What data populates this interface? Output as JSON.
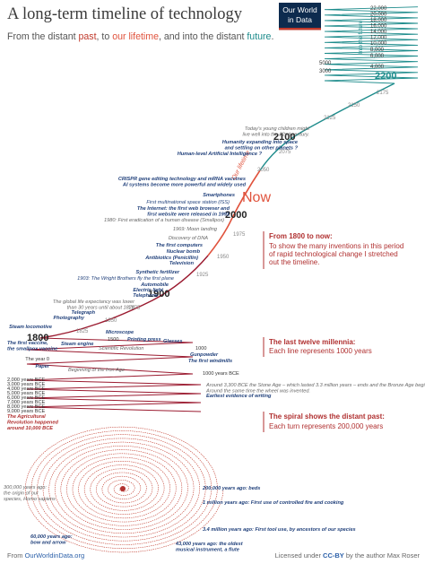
{
  "header": {
    "title": "A long-term timeline of technology",
    "subtitle": [
      "From the distant ",
      "past",
      ", to ",
      "our lifetime",
      ", and into the distant ",
      "future",
      "."
    ],
    "logo": [
      "Our World",
      "in Data"
    ]
  },
  "future_scale": {
    "label": "Into the future",
    "ticks": [
      "22,000",
      "20,000",
      "18,000",
      "16,000",
      "14,000",
      "12,000",
      "10,000",
      "8,000",
      "6,000",
      "5000",
      "4,000",
      "3000",
      "2200"
    ]
  },
  "years": [
    "2175",
    "2150",
    "2125",
    "2100",
    "2075",
    "2050",
    "Now",
    "Our lifetime",
    "2000",
    "1975",
    "1950",
    "1925",
    "1900",
    "1875",
    "1850",
    "1825",
    "1800"
  ],
  "era_labels": [
    "1500",
    "1000",
    "The year 0",
    "1000 years BCE",
    "2,000 years BCE",
    "3,000 years BCE",
    "4,000 years BCE",
    "5,000 years BCE",
    "6,000 years BCE",
    "7,000 years BCE",
    "8,000 years BCE",
    "9,000 years BCE"
  ],
  "events": [
    {
      "lines": [
        "Today's young children might",
        "live well into the 22nd century."
      ]
    },
    {
      "lines": [
        "Humanity expanding into space",
        "and settling on other planets ?"
      ]
    },
    {
      "lines": [
        "Human-level Artificial Intelligence ?"
      ]
    },
    {
      "lines": [
        "CRISPR gene editing technology and mRNA vaccines",
        "AI systems become more powerful and widely used"
      ]
    },
    {
      "lines": [
        "Smartphones"
      ]
    },
    {
      "lines": [
        "First multinational space station (ISS)"
      ]
    },
    {
      "lines": [
        "The Internet: the first web browser and",
        "first website were released in 1991"
      ]
    },
    {
      "lines": [
        "1980: First eradication of a human disease (Smallpox)"
      ]
    },
    {
      "lines": [
        "1969: Moon landing"
      ]
    },
    {
      "lines": [
        "Discovery of DNA"
      ]
    },
    {
      "lines": [
        "The first computers"
      ]
    },
    {
      "lines": [
        "Nuclear bomb"
      ]
    },
    {
      "lines": [
        "Antibiotics (Penicillin)"
      ]
    },
    {
      "lines": [
        "Television"
      ]
    },
    {
      "lines": [
        "Synthetic fertilizer"
      ]
    },
    {
      "lines": [
        "1903: The Wright Brothers fly the first plane"
      ]
    },
    {
      "lines": [
        "Automobile"
      ]
    },
    {
      "lines": [
        "Electric light"
      ]
    },
    {
      "lines": [
        "Telephone"
      ]
    },
    {
      "lines": [
        "The global life expectancy was lower",
        "than 30 years until about 1870"
      ]
    },
    {
      "lines": [
        "Telegraph"
      ]
    },
    {
      "lines": [
        "Photography"
      ]
    },
    {
      "lines": [
        "Steam locomotive"
      ]
    },
    {
      "lines": [
        "The first vaccine,",
        "the smallpox vaccine"
      ]
    },
    {
      "lines": [
        "Steam engine"
      ]
    },
    {
      "lines": [
        "Microscope"
      ]
    },
    {
      "lines": [
        "Printing press"
      ]
    },
    {
      "lines": [
        "Scientific Revolution"
      ]
    },
    {
      "lines": [
        "Glasses"
      ]
    },
    {
      "lines": [
        "Gunpowder"
      ]
    },
    {
      "lines": [
        "The first windmills"
      ]
    },
    {
      "lines": [
        "Paper"
      ]
    },
    {
      "lines": [
        "Beginning of the Iron Age"
      ]
    },
    {
      "lines": [
        "Around 3,300 BCE the Stone Age – which lasted 3.3 million years – ends and the Bronze Age begins.",
        "Around the same time the wheel was invented."
      ]
    },
    {
      "lines": [
        "Earliest evidence of writing"
      ]
    },
    {
      "lines": [
        "The Agricultural",
        "Revolution happened",
        "around 10,000 BCE"
      ]
    },
    {
      "lines": [
        "300,000 years ago:",
        "the origin of our",
        "species, Homo sapiens"
      ]
    },
    {
      "lines": [
        "200,000 years ago: beds"
      ]
    },
    {
      "lines": [
        "1 million years ago: First use of controlled fire and cooking"
      ]
    },
    {
      "lines": [
        "3.4 million years ago: First tool use, by ancestors of our species"
      ]
    },
    {
      "lines": [
        "60,000 years ago:",
        "bow and arrow"
      ]
    },
    {
      "lines": [
        "43,000 years ago: the oldest",
        "musical instrument, a flute"
      ]
    }
  ],
  "panels": [
    {
      "heading": "From 1800 to now:",
      "lines": [
        "To show the many inventions in this period",
        "of rapid technological change I stretched",
        "out the timeline."
      ]
    },
    {
      "heading": "The last twelve millennia:",
      "lines": [
        "Each line represents 1000 years"
      ]
    },
    {
      "heading": "The spiral shows the distant past:",
      "lines": [
        "Each turn represents 200,000 years"
      ]
    }
  ],
  "footer": {
    "left": [
      "From ",
      "OurWorldinData.org"
    ],
    "right": [
      "Licensed under ",
      "CC-BY",
      " by the author Max Roser"
    ]
  }
}
